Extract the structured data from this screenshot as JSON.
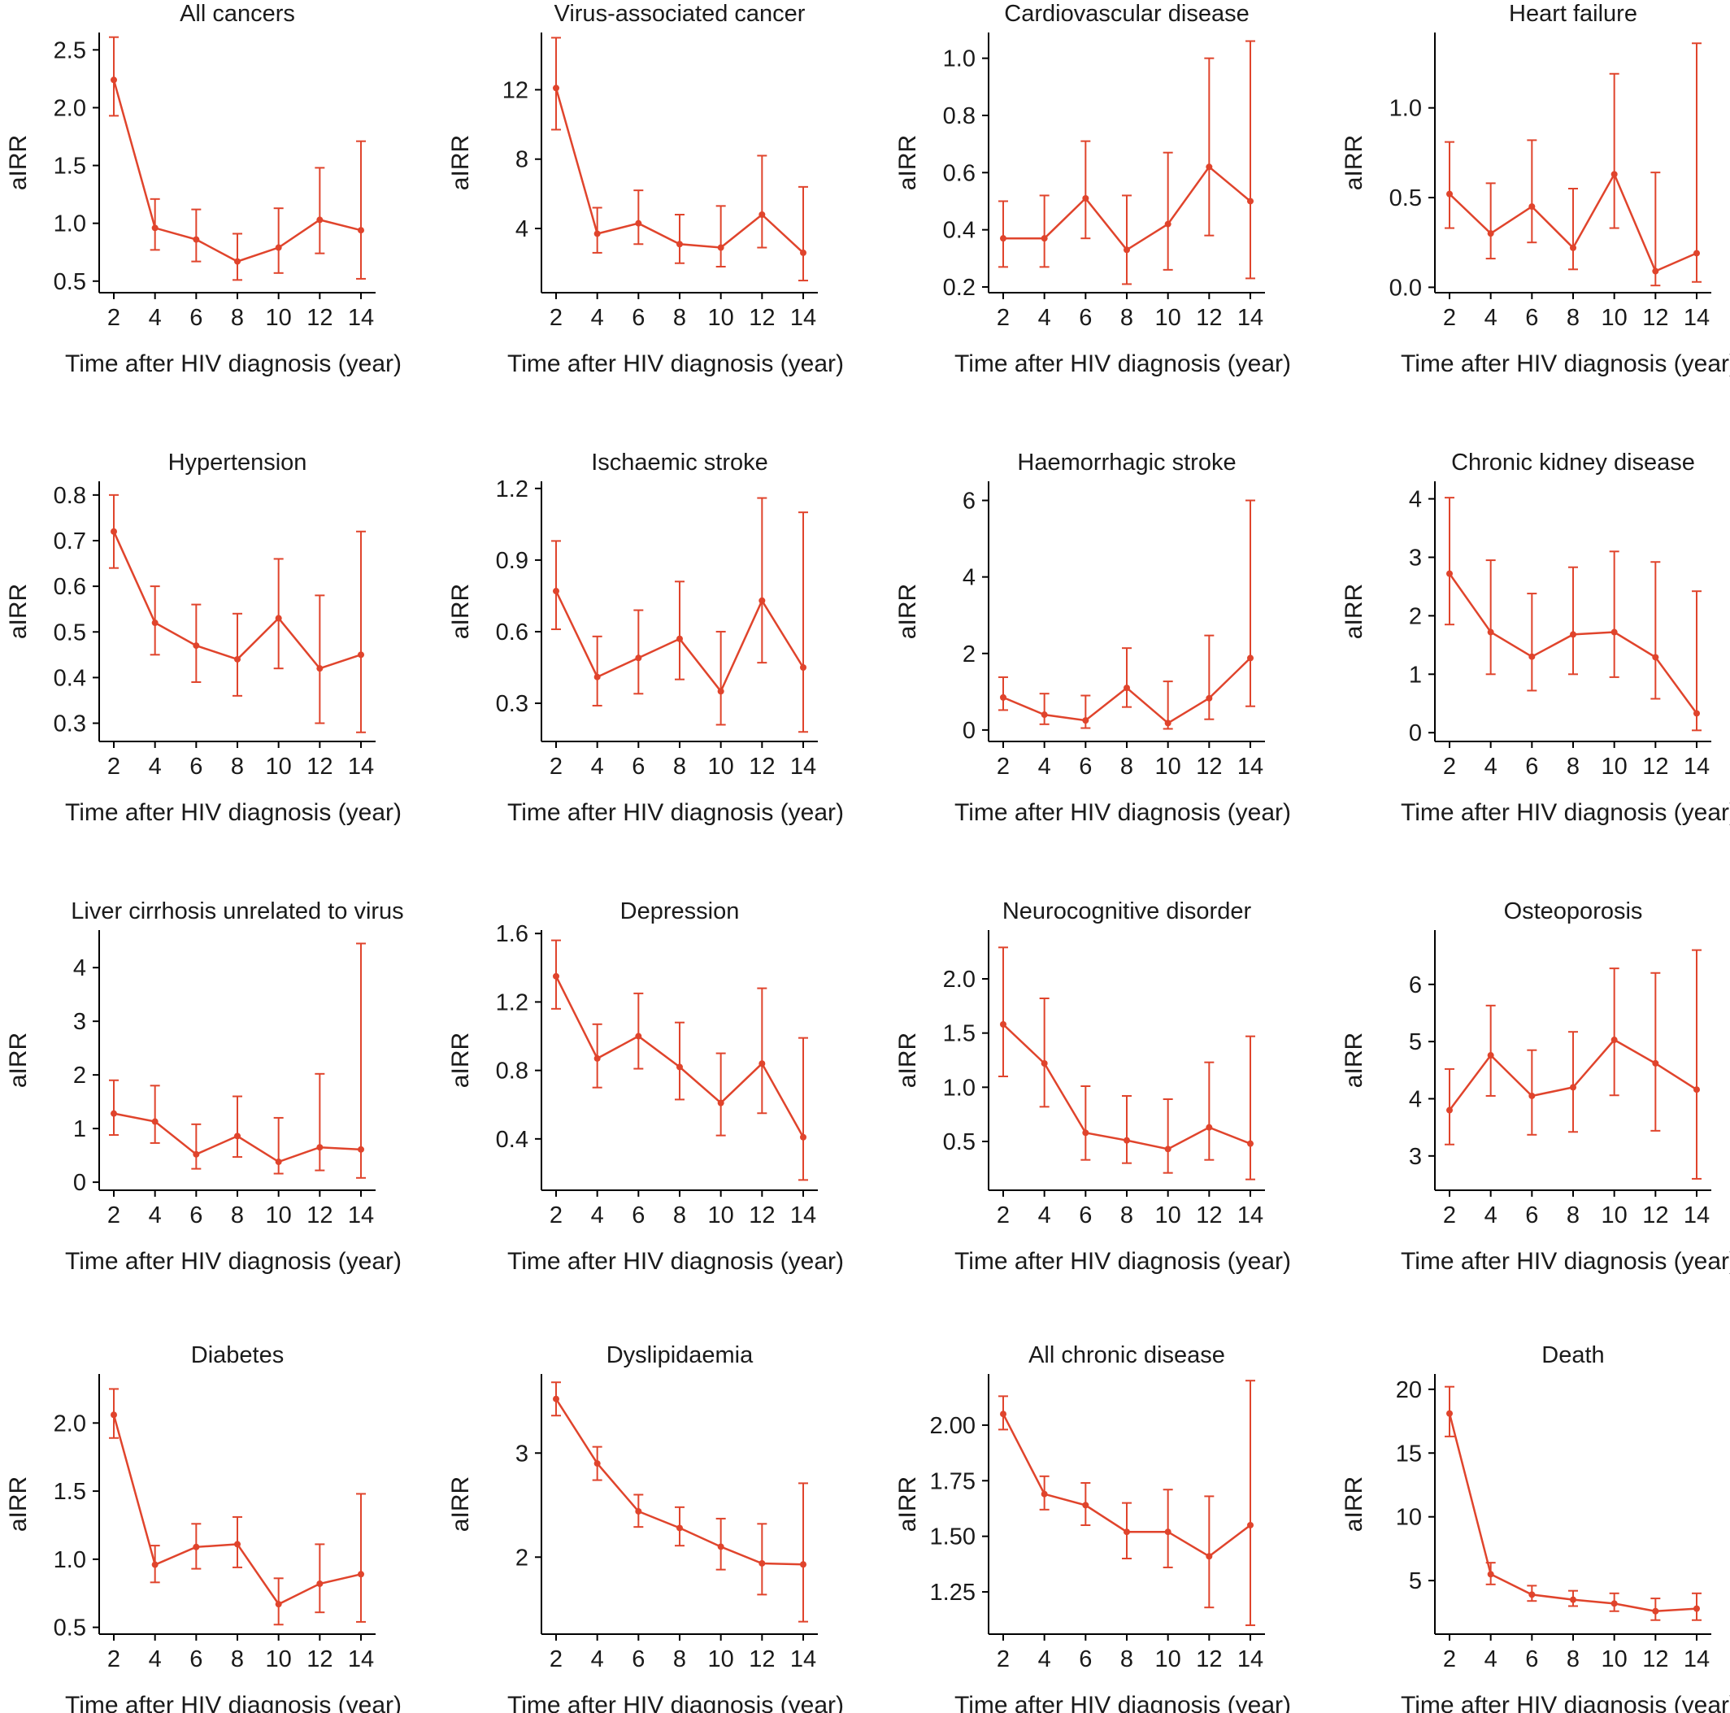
{
  "colors": {
    "series": "#e0442c",
    "axis": "#000000",
    "text": "#1a1a1a"
  },
  "chart_data": [
    {
      "type": "line",
      "title": "All cancers",
      "xlabel": "Time after HIV diagnosis (year)",
      "ylabel": "aIRR",
      "x": [
        2,
        4,
        6,
        8,
        10,
        12,
        14
      ],
      "y": [
        2.24,
        0.96,
        0.86,
        0.67,
        0.79,
        1.03,
        0.94
      ],
      "lower": [
        1.93,
        0.77,
        0.67,
        0.51,
        0.57,
        0.74,
        0.52
      ],
      "upper": [
        2.61,
        1.21,
        1.12,
        0.91,
        1.13,
        1.48,
        1.71
      ],
      "ylim": [
        0.4,
        2.65
      ],
      "yticks": [
        "0.5",
        "1.0",
        "1.5",
        "2.0",
        "2.5"
      ],
      "xticks": [
        "2",
        "4",
        "6",
        "8",
        "10",
        "12",
        "14"
      ]
    },
    {
      "type": "line",
      "title": "Virus-associated cancer",
      "xlabel": "Time after HIV diagnosis (year)",
      "ylabel": "aIRR",
      "x": [
        2,
        4,
        6,
        8,
        10,
        12,
        14
      ],
      "y": [
        12.1,
        3.7,
        4.3,
        3.1,
        2.9,
        4.8,
        2.6
      ],
      "lower": [
        9.7,
        2.6,
        3.1,
        2.0,
        1.8,
        2.9,
        1.0
      ],
      "upper": [
        15.0,
        5.2,
        6.2,
        4.8,
        5.3,
        8.2,
        6.4
      ],
      "ylim": [
        0.3,
        15.3
      ],
      "yticks": [
        "4",
        "8",
        "12"
      ],
      "xticks": [
        "2",
        "4",
        "6",
        "8",
        "10",
        "12",
        "14"
      ]
    },
    {
      "type": "line",
      "title": "Cardiovascular disease",
      "xlabel": "Time after HIV diagnosis (year)",
      "ylabel": "aIRR",
      "x": [
        2,
        4,
        6,
        8,
        10,
        12,
        14
      ],
      "y": [
        0.37,
        0.37,
        0.51,
        0.33,
        0.42,
        0.62,
        0.5
      ],
      "lower": [
        0.27,
        0.27,
        0.37,
        0.21,
        0.26,
        0.38,
        0.23
      ],
      "upper": [
        0.5,
        0.52,
        0.71,
        0.52,
        0.67,
        1.0,
        1.06
      ],
      "ylim": [
        0.18,
        1.09
      ],
      "yticks": [
        "0.2",
        "0.4",
        "0.6",
        "0.8",
        "1.0"
      ],
      "xticks": [
        "2",
        "4",
        "6",
        "8",
        "10",
        "12",
        "14"
      ]
    },
    {
      "type": "line",
      "title": "Heart failure",
      "xlabel": "Time after HIV diagnosis (year)",
      "ylabel": "aIRR",
      "x": [
        2,
        4,
        6,
        8,
        10,
        12,
        14
      ],
      "y": [
        0.52,
        0.3,
        0.45,
        0.22,
        0.63,
        0.09,
        0.19
      ],
      "lower": [
        0.33,
        0.16,
        0.25,
        0.1,
        0.33,
        0.01,
        0.03
      ],
      "upper": [
        0.81,
        0.58,
        0.82,
        0.55,
        1.19,
        0.64,
        1.36
      ],
      "ylim": [
        -0.03,
        1.42
      ],
      "yticks": [
        "0.0",
        "0.5",
        "1.0"
      ],
      "xticks": [
        "2",
        "4",
        "6",
        "8",
        "10",
        "12",
        "14"
      ]
    },
    {
      "type": "line",
      "title": "Hypertension",
      "xlabel": "Time after HIV diagnosis (year)",
      "ylabel": "aIRR",
      "x": [
        2,
        4,
        6,
        8,
        10,
        12,
        14
      ],
      "y": [
        0.72,
        0.52,
        0.47,
        0.44,
        0.53,
        0.42,
        0.45
      ],
      "lower": [
        0.64,
        0.45,
        0.39,
        0.36,
        0.42,
        0.3,
        0.28
      ],
      "upper": [
        0.8,
        0.6,
        0.56,
        0.54,
        0.66,
        0.58,
        0.72
      ],
      "ylim": [
        0.26,
        0.83
      ],
      "yticks": [
        "0.3",
        "0.4",
        "0.5",
        "0.6",
        "0.7",
        "0.8"
      ],
      "xticks": [
        "2",
        "4",
        "6",
        "8",
        "10",
        "12",
        "14"
      ]
    },
    {
      "type": "line",
      "title": "Ischaemic stroke",
      "xlabel": "Time after HIV diagnosis (year)",
      "ylabel": "aIRR",
      "x": [
        2,
        4,
        6,
        8,
        10,
        12,
        14
      ],
      "y": [
        0.77,
        0.41,
        0.49,
        0.57,
        0.35,
        0.73,
        0.45
      ],
      "lower": [
        0.61,
        0.29,
        0.34,
        0.4,
        0.21,
        0.47,
        0.18
      ],
      "upper": [
        0.98,
        0.58,
        0.69,
        0.81,
        0.6,
        1.16,
        1.1
      ],
      "ylim": [
        0.14,
        1.23
      ],
      "yticks": [
        "0.3",
        "0.6",
        "0.9",
        "1.2"
      ],
      "xticks": [
        "2",
        "4",
        "6",
        "8",
        "10",
        "12",
        "14"
      ]
    },
    {
      "type": "line",
      "title": "Haemorrhagic stroke",
      "xlabel": "Time after HIV diagnosis (year)",
      "ylabel": "aIRR",
      "x": [
        2,
        4,
        6,
        8,
        10,
        12,
        14
      ],
      "y": [
        0.85,
        0.4,
        0.25,
        1.1,
        0.18,
        0.83,
        1.88
      ],
      "lower": [
        0.52,
        0.15,
        0.05,
        0.6,
        0.03,
        0.28,
        0.62
      ],
      "upper": [
        1.38,
        0.95,
        0.9,
        2.14,
        1.27,
        2.47,
        6.0
      ],
      "ylim": [
        -0.3,
        6.5
      ],
      "yticks": [
        "0",
        "2",
        "4",
        "6"
      ],
      "xticks": [
        "2",
        "4",
        "6",
        "8",
        "10",
        "12",
        "14"
      ]
    },
    {
      "type": "line",
      "title": "Chronic kidney disease",
      "xlabel": "Time after HIV diagnosis (year)",
      "ylabel": "aIRR",
      "x": [
        2,
        4,
        6,
        8,
        10,
        12,
        14
      ],
      "y": [
        2.72,
        1.72,
        1.3,
        1.68,
        1.72,
        1.29,
        0.33
      ],
      "lower": [
        1.85,
        1.0,
        0.72,
        1.0,
        0.95,
        0.58,
        0.04
      ],
      "upper": [
        4.02,
        2.95,
        2.38,
        2.83,
        3.1,
        2.92,
        2.42
      ],
      "ylim": [
        -0.15,
        4.3
      ],
      "yticks": [
        "0",
        "1",
        "2",
        "3",
        "4"
      ],
      "xticks": [
        "2",
        "4",
        "6",
        "8",
        "10",
        "12",
        "14"
      ]
    },
    {
      "type": "line",
      "title": "Liver cirrhosis unrelated to virus",
      "xlabel": "Time after HIV diagnosis (year)",
      "ylabel": "aIRR",
      "x": [
        2,
        4,
        6,
        8,
        10,
        12,
        14
      ],
      "y": [
        1.28,
        1.13,
        0.52,
        0.86,
        0.38,
        0.65,
        0.61
      ],
      "lower": [
        0.88,
        0.73,
        0.25,
        0.47,
        0.16,
        0.22,
        0.08
      ],
      "upper": [
        1.9,
        1.8,
        1.08,
        1.6,
        1.2,
        2.02,
        4.45
      ],
      "ylim": [
        -0.15,
        4.7
      ],
      "yticks": [
        "0",
        "1",
        "2",
        "3",
        "4"
      ],
      "xticks": [
        "2",
        "4",
        "6",
        "8",
        "10",
        "12",
        "14"
      ]
    },
    {
      "type": "line",
      "title": "Depression",
      "xlabel": "Time after HIV diagnosis (year)",
      "ylabel": "aIRR",
      "x": [
        2,
        4,
        6,
        8,
        10,
        12,
        14
      ],
      "y": [
        1.35,
        0.87,
        1.0,
        0.82,
        0.61,
        0.84,
        0.41
      ],
      "lower": [
        1.16,
        0.7,
        0.81,
        0.63,
        0.42,
        0.55,
        0.16
      ],
      "upper": [
        1.56,
        1.07,
        1.25,
        1.08,
        0.9,
        1.28,
        0.99
      ],
      "ylim": [
        0.1,
        1.62
      ],
      "yticks": [
        "0.4",
        "0.8",
        "1.2",
        "1.6"
      ],
      "xticks": [
        "2",
        "4",
        "6",
        "8",
        "10",
        "12",
        "14"
      ]
    },
    {
      "type": "line",
      "title": "Neurocognitive disorder",
      "xlabel": "Time after HIV diagnosis (year)",
      "ylabel": "aIRR",
      "x": [
        2,
        4,
        6,
        8,
        10,
        12,
        14
      ],
      "y": [
        1.58,
        1.22,
        0.58,
        0.51,
        0.43,
        0.63,
        0.48
      ],
      "lower": [
        1.1,
        0.82,
        0.33,
        0.3,
        0.21,
        0.33,
        0.15
      ],
      "upper": [
        2.29,
        1.82,
        1.01,
        0.92,
        0.89,
        1.23,
        1.47
      ],
      "ylim": [
        0.05,
        2.45
      ],
      "yticks": [
        "0.5",
        "1.0",
        "1.5",
        "2.0"
      ],
      "xticks": [
        "2",
        "4",
        "6",
        "8",
        "10",
        "12",
        "14"
      ]
    },
    {
      "type": "line",
      "title": "Osteoporosis",
      "xlabel": "Time after HIV diagnosis (year)",
      "ylabel": "aIRR",
      "x": [
        2,
        4,
        6,
        8,
        10,
        12,
        14
      ],
      "y": [
        3.8,
        4.76,
        4.05,
        4.2,
        5.03,
        4.62,
        4.16
      ],
      "lower": [
        3.2,
        4.05,
        3.37,
        3.42,
        4.06,
        3.44,
        2.6
      ],
      "upper": [
        4.52,
        5.63,
        4.85,
        5.17,
        6.28,
        6.2,
        6.6
      ],
      "ylim": [
        2.4,
        6.95
      ],
      "yticks": [
        "3",
        "4",
        "5",
        "6"
      ],
      "xticks": [
        "2",
        "4",
        "6",
        "8",
        "10",
        "12",
        "14"
      ]
    },
    {
      "type": "line",
      "title": "Diabetes",
      "xlabel": "Time after HIV diagnosis (year)",
      "ylabel": "aIRR",
      "x": [
        2,
        4,
        6,
        8,
        10,
        12,
        14
      ],
      "y": [
        2.06,
        0.96,
        1.09,
        1.11,
        0.67,
        0.82,
        0.89
      ],
      "lower": [
        1.89,
        0.83,
        0.93,
        0.94,
        0.52,
        0.61,
        0.54
      ],
      "upper": [
        2.25,
        1.1,
        1.26,
        1.31,
        0.86,
        1.11,
        1.48
      ],
      "ylim": [
        0.45,
        2.36
      ],
      "yticks": [
        "0.5",
        "1.0",
        "1.5",
        "2.0"
      ],
      "xticks": [
        "2",
        "4",
        "6",
        "8",
        "10",
        "12",
        "14"
      ]
    },
    {
      "type": "line",
      "title": "Dyslipidaemia",
      "xlabel": "Time after HIV diagnosis (year)",
      "ylabel": "aIRR",
      "x": [
        2,
        4,
        6,
        8,
        10,
        12,
        14
      ],
      "y": [
        3.52,
        2.9,
        2.44,
        2.28,
        2.1,
        1.94,
        1.93
      ],
      "lower": [
        3.36,
        2.74,
        2.29,
        2.11,
        1.88,
        1.64,
        1.38
      ],
      "upper": [
        3.68,
        3.06,
        2.6,
        2.48,
        2.37,
        2.32,
        2.71
      ],
      "ylim": [
        1.26,
        3.76
      ],
      "yticks": [
        "2",
        "3"
      ],
      "xticks": [
        "2",
        "4",
        "6",
        "8",
        "10",
        "12",
        "14"
      ]
    },
    {
      "type": "line",
      "title": "All chronic disease",
      "xlabel": "Time after HIV diagnosis (year)",
      "ylabel": "aIRR",
      "x": [
        2,
        4,
        6,
        8,
        10,
        12,
        14
      ],
      "y": [
        2.05,
        1.69,
        1.64,
        1.52,
        1.52,
        1.41,
        1.55
      ],
      "lower": [
        1.98,
        1.62,
        1.55,
        1.4,
        1.36,
        1.18,
        1.1
      ],
      "upper": [
        2.13,
        1.77,
        1.74,
        1.65,
        1.71,
        1.68,
        2.2
      ],
      "ylim": [
        1.06,
        2.23
      ],
      "yticks": [
        "1.25",
        "1.50",
        "1.75",
        "2.00"
      ],
      "xticks": [
        "2",
        "4",
        "6",
        "8",
        "10",
        "12",
        "14"
      ]
    },
    {
      "type": "line",
      "title": "Death",
      "xlabel": "Time after HIV diagnosis (year)",
      "ylabel": "aIRR",
      "x": [
        2,
        4,
        6,
        8,
        10,
        12,
        14
      ],
      "y": [
        18.1,
        5.5,
        3.9,
        3.5,
        3.2,
        2.6,
        2.8
      ],
      "lower": [
        16.3,
        4.7,
        3.4,
        3.0,
        2.6,
        1.9,
        1.9
      ],
      "upper": [
        20.2,
        6.4,
        4.6,
        4.2,
        4.0,
        3.6,
        4.0
      ],
      "ylim": [
        0.8,
        21.2
      ],
      "yticks": [
        "5",
        "10",
        "15",
        "20"
      ],
      "xticks": [
        "2",
        "4",
        "6",
        "8",
        "10",
        "12",
        "14"
      ]
    }
  ]
}
